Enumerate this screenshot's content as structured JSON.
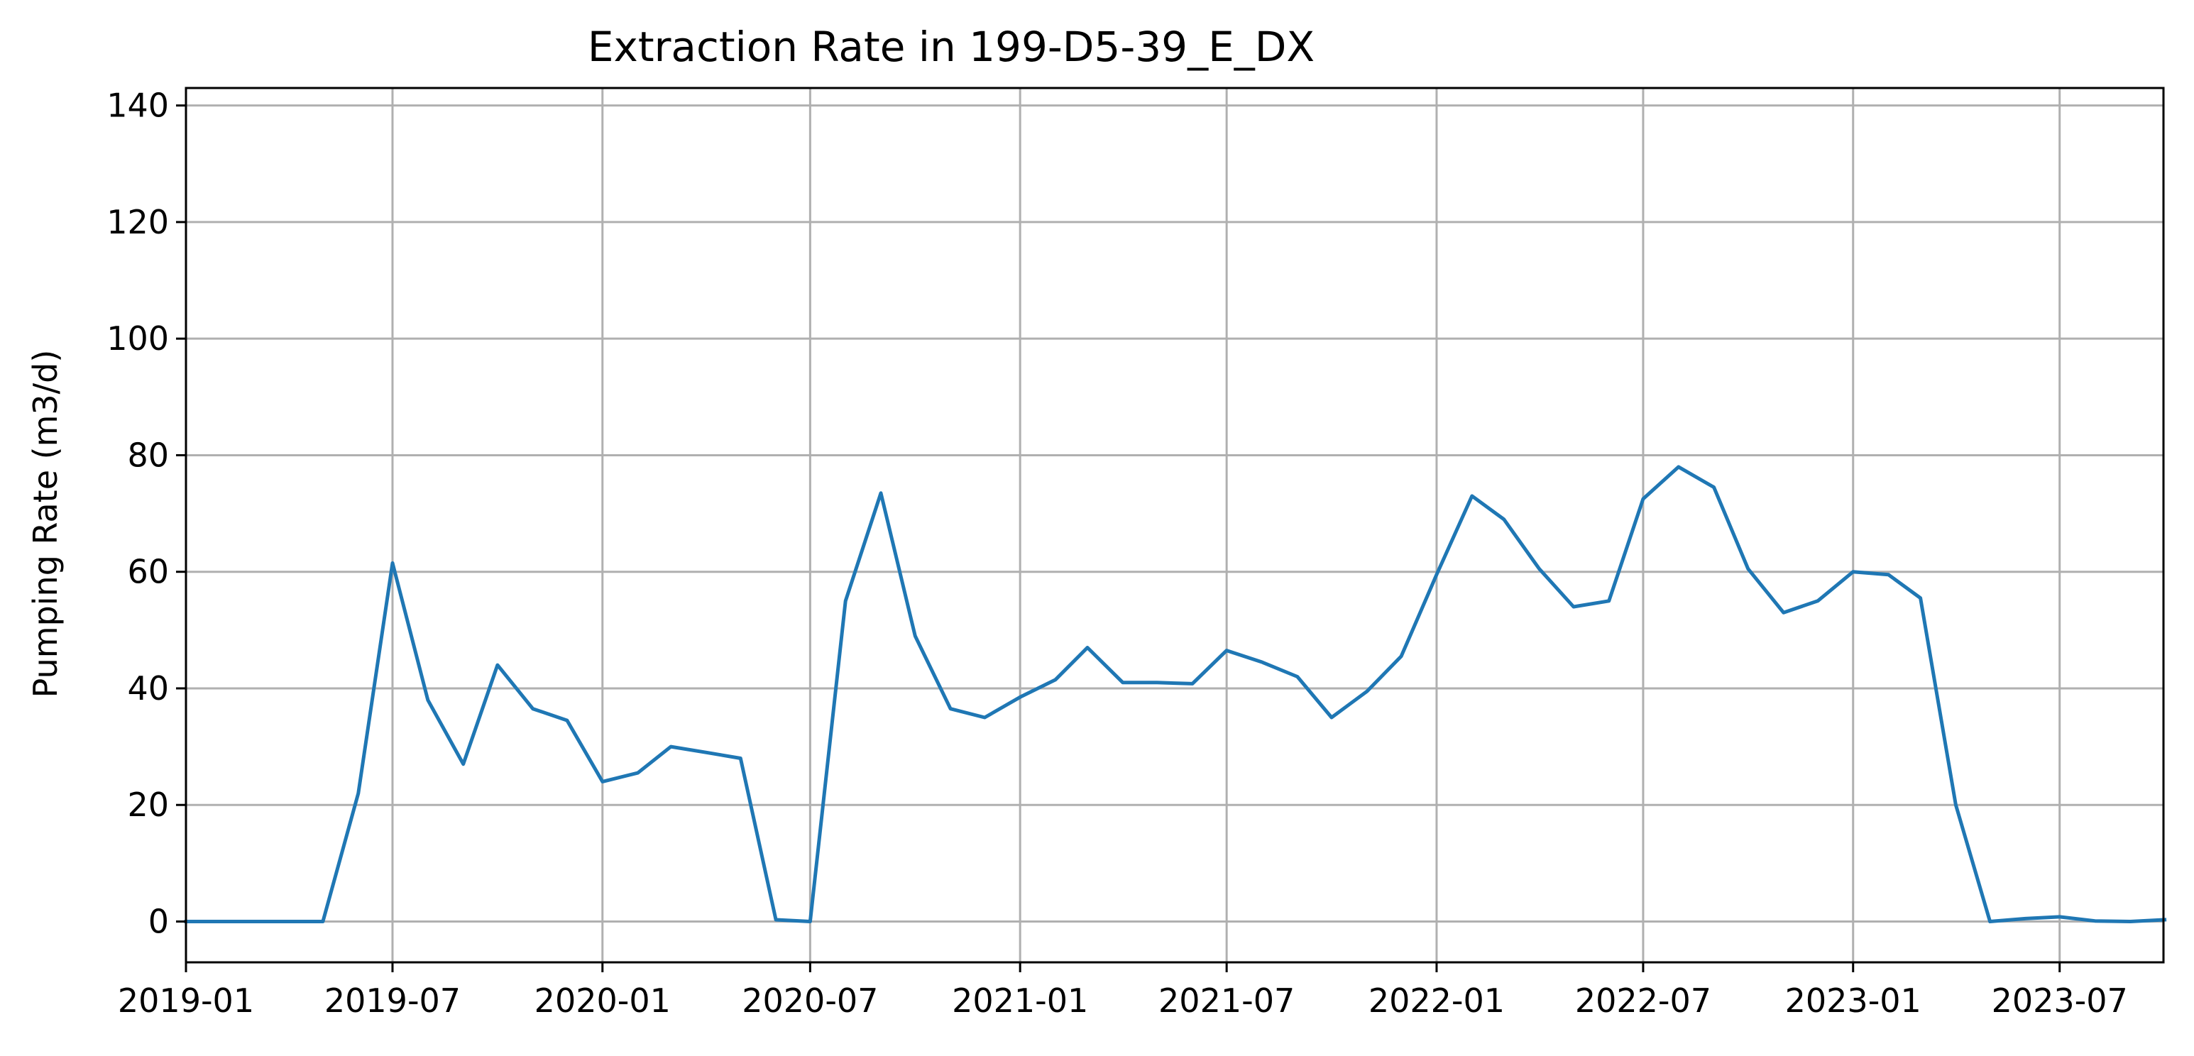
{
  "chart_data": {
    "type": "line",
    "title": "Extraction Rate in 199-D5-39_E_DX",
    "xlabel": "",
    "ylabel": "Pumping Rate (m3/d)",
    "xlim": [
      "2019-01-01",
      "2023-09-30"
    ],
    "ylim": [
      -7,
      143
    ],
    "x_ticks": [
      "2019-01",
      "2019-07",
      "2020-01",
      "2020-07",
      "2021-01",
      "2021-07",
      "2022-01",
      "2022-07",
      "2023-01",
      "2023-07"
    ],
    "y_ticks": [
      0,
      20,
      40,
      60,
      80,
      100,
      120,
      140
    ],
    "grid": true,
    "series": [
      {
        "color": "#1f77b4",
        "x": [
          "2019-01-01",
          "2019-02-01",
          "2019-03-01",
          "2019-04-01",
          "2019-05-01",
          "2019-06-01",
          "2019-07-01",
          "2019-08-01",
          "2019-09-01",
          "2019-10-01",
          "2019-11-01",
          "2019-12-01",
          "2020-01-01",
          "2020-02-01",
          "2020-03-01",
          "2020-04-01",
          "2020-05-01",
          "2020-06-01",
          "2020-07-01",
          "2020-08-01",
          "2020-09-01",
          "2020-10-01",
          "2020-11-01",
          "2020-12-01",
          "2021-01-01",
          "2021-02-01",
          "2021-03-01",
          "2021-04-01",
          "2021-05-01",
          "2021-06-01",
          "2021-07-01",
          "2021-08-01",
          "2021-09-01",
          "2021-10-01",
          "2021-11-01",
          "2021-12-01",
          "2022-01-01",
          "2022-02-01",
          "2022-03-01",
          "2022-04-01",
          "2022-05-01",
          "2022-06-01",
          "2022-07-01",
          "2022-08-01",
          "2022-09-01",
          "2022-10-01",
          "2022-11-01",
          "2022-12-01",
          "2023-01-01",
          "2023-02-01",
          "2023-03-01",
          "2023-04-01",
          "2023-05-01",
          "2023-06-01",
          "2023-07-01",
          "2023-08-01",
          "2023-09-01",
          "2023-10-01"
        ],
        "values": [
          0,
          0,
          0,
          0,
          0,
          22,
          61.5,
          38,
          27,
          44,
          36.5,
          34.5,
          24,
          25.5,
          30,
          29,
          28,
          0.3,
          0,
          55,
          73.5,
          49,
          36.5,
          35,
          38.5,
          41.5,
          47,
          41,
          41,
          40.8,
          46.5,
          44.5,
          42,
          35,
          39.5,
          45.5,
          59.5,
          73,
          69,
          60.5,
          54,
          55,
          72.5,
          78,
          74.5,
          60.5,
          53,
          55,
          60,
          59.5,
          55.5,
          20,
          0,
          0.5,
          0.8,
          0.1,
          0,
          0.3
        ]
      }
    ]
  }
}
